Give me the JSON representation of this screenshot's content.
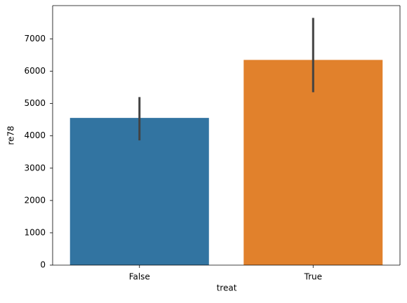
{
  "chart_data": {
    "type": "bar",
    "xlabel": "treat",
    "ylabel": "re78",
    "categories": [
      "False",
      "True"
    ],
    "values": [
      4555,
      6350
    ],
    "ci_low": [
      3860,
      5350
    ],
    "ci_high": [
      5200,
      7650
    ],
    "colors": [
      "#3274a1",
      "#e1812c"
    ],
    "errorbar_color": "#424242",
    "ylim": [
      0,
      8030
    ],
    "yticks": [
      0,
      1000,
      2000,
      3000,
      4000,
      5000,
      6000,
      7000
    ],
    "grid": false
  }
}
